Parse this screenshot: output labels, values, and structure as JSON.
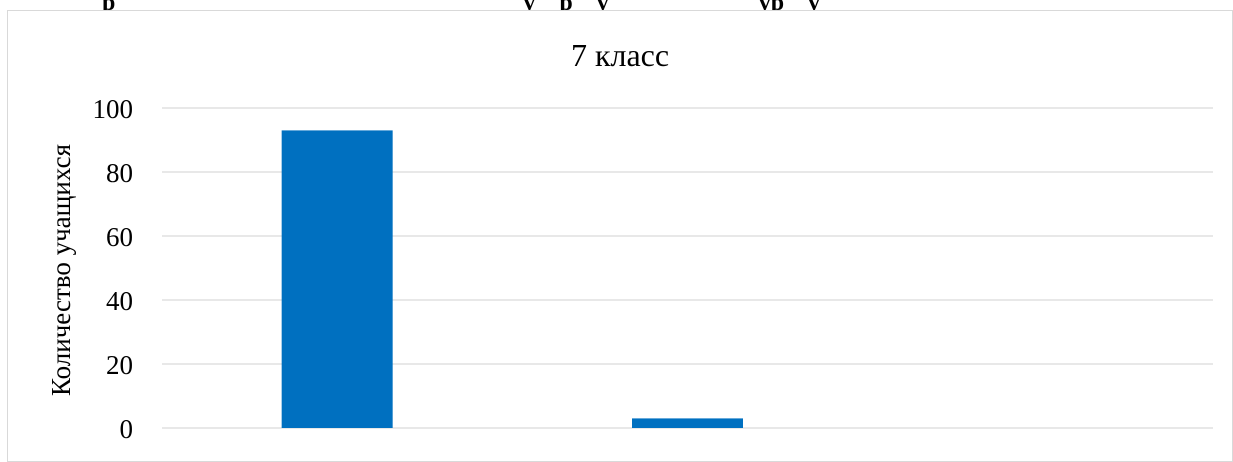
{
  "document": {
    "heading_fragment": "                 р                                                                    у    р    у                         ур    у"
  },
  "chart_data": {
    "type": "bar",
    "title": "7 класс",
    "xlabel": "",
    "ylabel": "Количество учащихся",
    "categories": [
      "",
      "",
      ""
    ],
    "series": [
      {
        "values": [
          93,
          3,
          0
        ],
        "color": "#0070c0"
      }
    ],
    "ylim": [
      0,
      100
    ],
    "yticks": [
      0,
      20,
      40,
      60,
      80,
      100
    ],
    "grid": true,
    "gridline_color": "#d9d9d9",
    "legend": "none"
  }
}
